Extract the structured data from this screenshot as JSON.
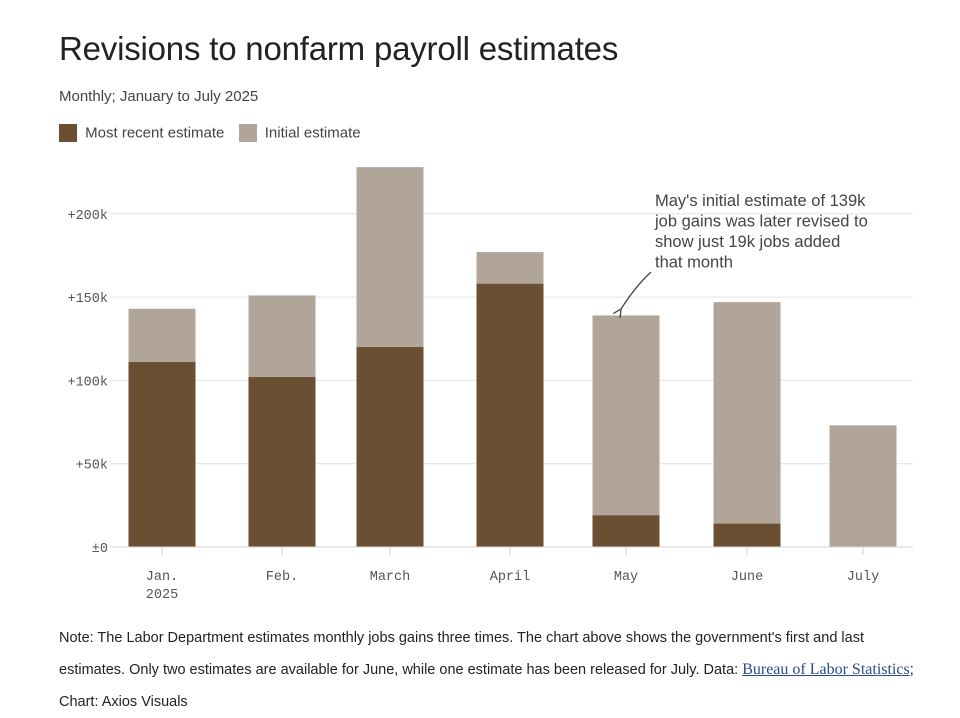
{
  "title": "Revisions to nonfarm payroll estimates",
  "subtitle": "Monthly; January to July 2025",
  "legend": {
    "recent_label": "Most recent estimate",
    "initial_label": "Initial estimate"
  },
  "colors": {
    "recent": "#6a4f33",
    "initial": "#b1a59a",
    "grid": "#e3e3e3",
    "axis_text": "#555555"
  },
  "annotation": {
    "lines": [
      "May's initial estimate of 139k",
      "job gains was later revised to",
      "show just 19k jobs added",
      "that month"
    ]
  },
  "chart_data": {
    "type": "bar",
    "categories": [
      "Jan. 2025",
      "Feb.",
      "March",
      "April",
      "May",
      "June",
      "July"
    ],
    "category_lines": [
      [
        "Jan.",
        "2025"
      ],
      [
        "Feb."
      ],
      [
        "March"
      ],
      [
        "April"
      ],
      [
        "May"
      ],
      [
        "June"
      ],
      [
        "July"
      ]
    ],
    "series": [
      {
        "name": "Most recent estimate",
        "values": [
          111,
          102,
          120,
          158,
          19,
          14,
          0
        ]
      },
      {
        "name": "Initial estimate",
        "values": [
          143,
          151,
          228,
          177,
          139,
          147,
          73
        ]
      }
    ],
    "units": "thousands of jobs",
    "ylim": [
      0,
      230
    ],
    "yticks": [
      0,
      50,
      100,
      150,
      200
    ],
    "ytick_labels": [
      "±0",
      "+50k",
      "+100k",
      "+150k",
      "+200k"
    ],
    "xlabel": "",
    "ylabel": "",
    "grid": true,
    "legend_position": "top-left"
  },
  "note": {
    "text": "Note: The Labor Department estimates monthly jobs gains three times. The chart above shows the government's first and last estimates. Only two estimates are available for June, while one estimate has been released for July. Data: ",
    "source_link": "Bureau of Labor Statistics",
    "credit": "; Chart: Axios Visuals"
  }
}
